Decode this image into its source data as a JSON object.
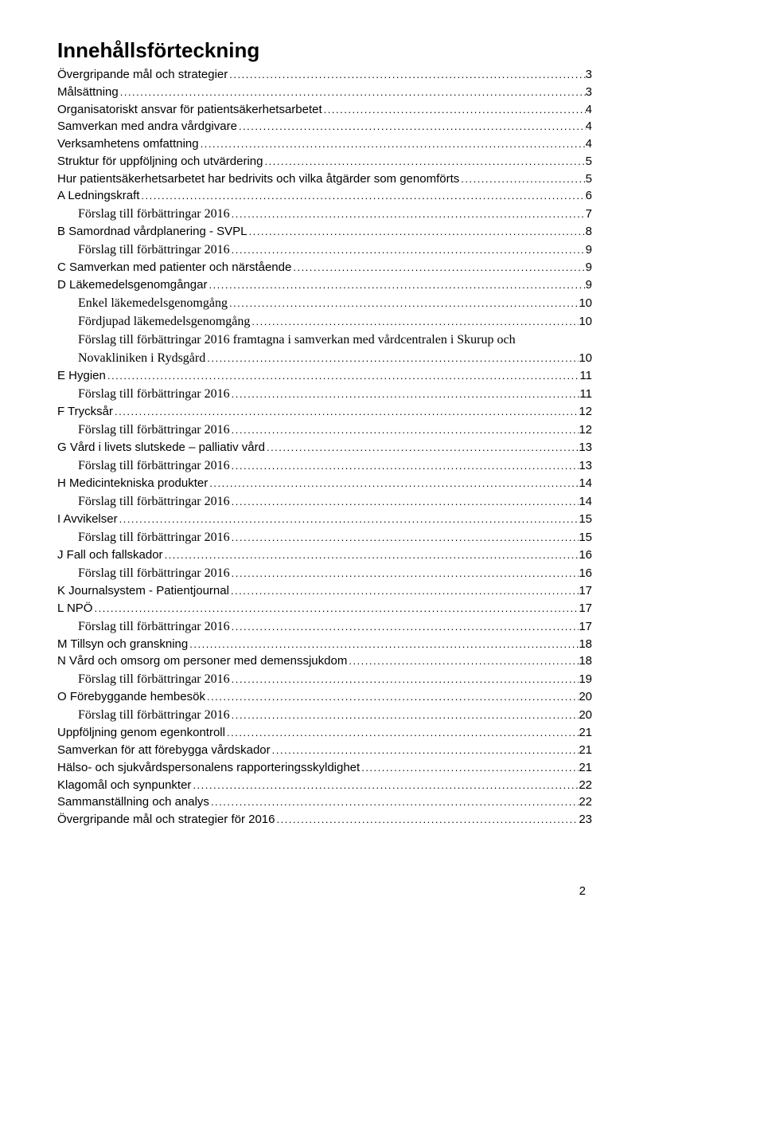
{
  "title": "Innehållsförteckning",
  "footer_page_number": "2",
  "toc": [
    {
      "text": "Övergripande mål och strategier",
      "page": "3",
      "indent": 0,
      "serif": false
    },
    {
      "text": "Målsättning",
      "page": "3",
      "indent": 0,
      "serif": false
    },
    {
      "text": "Organisatoriskt ansvar för patientsäkerhetsarbetet",
      "page": "4",
      "indent": 0,
      "serif": false
    },
    {
      "text": "Samverkan med andra vårdgivare",
      "page": "4",
      "indent": 0,
      "serif": false
    },
    {
      "text": "Verksamhetens omfattning",
      "page": "4",
      "indent": 0,
      "serif": false
    },
    {
      "text": "Struktur för uppföljning och utvärdering",
      "page": "5",
      "indent": 0,
      "serif": false
    },
    {
      "text": "Hur patientsäkerhetsarbetet har bedrivits och vilka åtgärder som genomförts",
      "page": "5",
      "indent": 0,
      "serif": false
    },
    {
      "text": "A Ledningskraft",
      "page": "6",
      "indent": 0,
      "serif": false
    },
    {
      "text": "Förslag till förbättringar 2016",
      "page": "7",
      "indent": 1,
      "serif": true
    },
    {
      "text": "B Samordnad vårdplanering - SVPL",
      "page": "8",
      "indent": 0,
      "serif": false
    },
    {
      "text": "Förslag till förbättringar 2016",
      "page": "9",
      "indent": 1,
      "serif": true
    },
    {
      "text": "C Samverkan med patienter och närstående",
      "page": "9",
      "indent": 0,
      "serif": false
    },
    {
      "text": "D Läkemedelsgenomgångar",
      "page": "9",
      "indent": 0,
      "serif": false
    },
    {
      "text": "Enkel läkemedelsgenomgång",
      "page": "10",
      "indent": 1,
      "serif": true
    },
    {
      "text": "Fördjupad läkemedelsgenomgång",
      "page": "10",
      "indent": 1,
      "serif": true
    },
    {
      "text": "Förslag till förbättringar 2016 framtagna i samverkan med vårdcentralen i Skurup och Novakliniken i Rydsgård",
      "page": "10",
      "indent": 1,
      "serif": true,
      "wrap": true
    },
    {
      "text": "E Hygien",
      "page": "11",
      "indent": 0,
      "serif": false
    },
    {
      "text": "Förslag till förbättringar 2016",
      "page": "11",
      "indent": 1,
      "serif": true
    },
    {
      "text": "F Trycksår",
      "page": "12",
      "indent": 0,
      "serif": false
    },
    {
      "text": "Förslag till förbättringar 2016",
      "page": "12",
      "indent": 1,
      "serif": true
    },
    {
      "text": "G Vård i livets slutskede – palliativ vård",
      "page": "13",
      "indent": 0,
      "serif": false
    },
    {
      "text": "Förslag till förbättringar 2016",
      "page": "13",
      "indent": 1,
      "serif": true
    },
    {
      "text": "H Medicintekniska produkter",
      "page": "14",
      "indent": 0,
      "serif": false
    },
    {
      "text": "Förslag till förbättringar 2016",
      "page": "14",
      "indent": 1,
      "serif": true
    },
    {
      "text": "I Avvikelser",
      "page": "15",
      "indent": 0,
      "serif": false
    },
    {
      "text": "Förslag till förbättringar 2016",
      "page": "15",
      "indent": 1,
      "serif": true
    },
    {
      "text": "J Fall och fallskador",
      "page": "16",
      "indent": 0,
      "serif": false
    },
    {
      "text": "Förslag till förbättringar 2016",
      "page": "16",
      "indent": 1,
      "serif": true
    },
    {
      "text": "K Journalsystem - Patientjournal",
      "page": "17",
      "indent": 0,
      "serif": false
    },
    {
      "text": "L NPÖ",
      "page": "17",
      "indent": 0,
      "serif": false
    },
    {
      "text": "Förslag till förbättringar 2016",
      "page": "17",
      "indent": 1,
      "serif": true
    },
    {
      "text": "M Tillsyn och granskning",
      "page": "18",
      "indent": 0,
      "serif": false
    },
    {
      "text": "N Vård och omsorg om personer med demenssjukdom",
      "page": "18",
      "indent": 0,
      "serif": false
    },
    {
      "text": "Förslag till förbättringar 2016",
      "page": "19",
      "indent": 1,
      "serif": true
    },
    {
      "text": "O Förebyggande hembesök",
      "page": "20",
      "indent": 0,
      "serif": false
    },
    {
      "text": "Förslag till förbättringar 2016",
      "page": "20",
      "indent": 1,
      "serif": true
    },
    {
      "text": "Uppföljning genom egenkontroll",
      "page": "21",
      "indent": 0,
      "serif": false
    },
    {
      "text": "Samverkan för att förebygga vårdskador",
      "page": "21",
      "indent": 0,
      "serif": false
    },
    {
      "text": "Hälso- och sjukvårdspersonalens rapporteringsskyldighet",
      "page": "21",
      "indent": 0,
      "serif": false
    },
    {
      "text": "Klagomål och synpunkter",
      "page": "22",
      "indent": 0,
      "serif": false
    },
    {
      "text": "Sammanställning och analys",
      "page": "22",
      "indent": 0,
      "serif": false
    },
    {
      "text": "Övergripande mål och strategier för 2016",
      "page": "23",
      "indent": 0,
      "serif": false
    }
  ],
  "wrap_line_1": "Förslag till förbättringar 2016 framtagna i samverkan med vårdcentralen i Skurup och",
  "wrap_line_2": "Novakliniken i Rydsgård",
  "wrap_page": "10"
}
